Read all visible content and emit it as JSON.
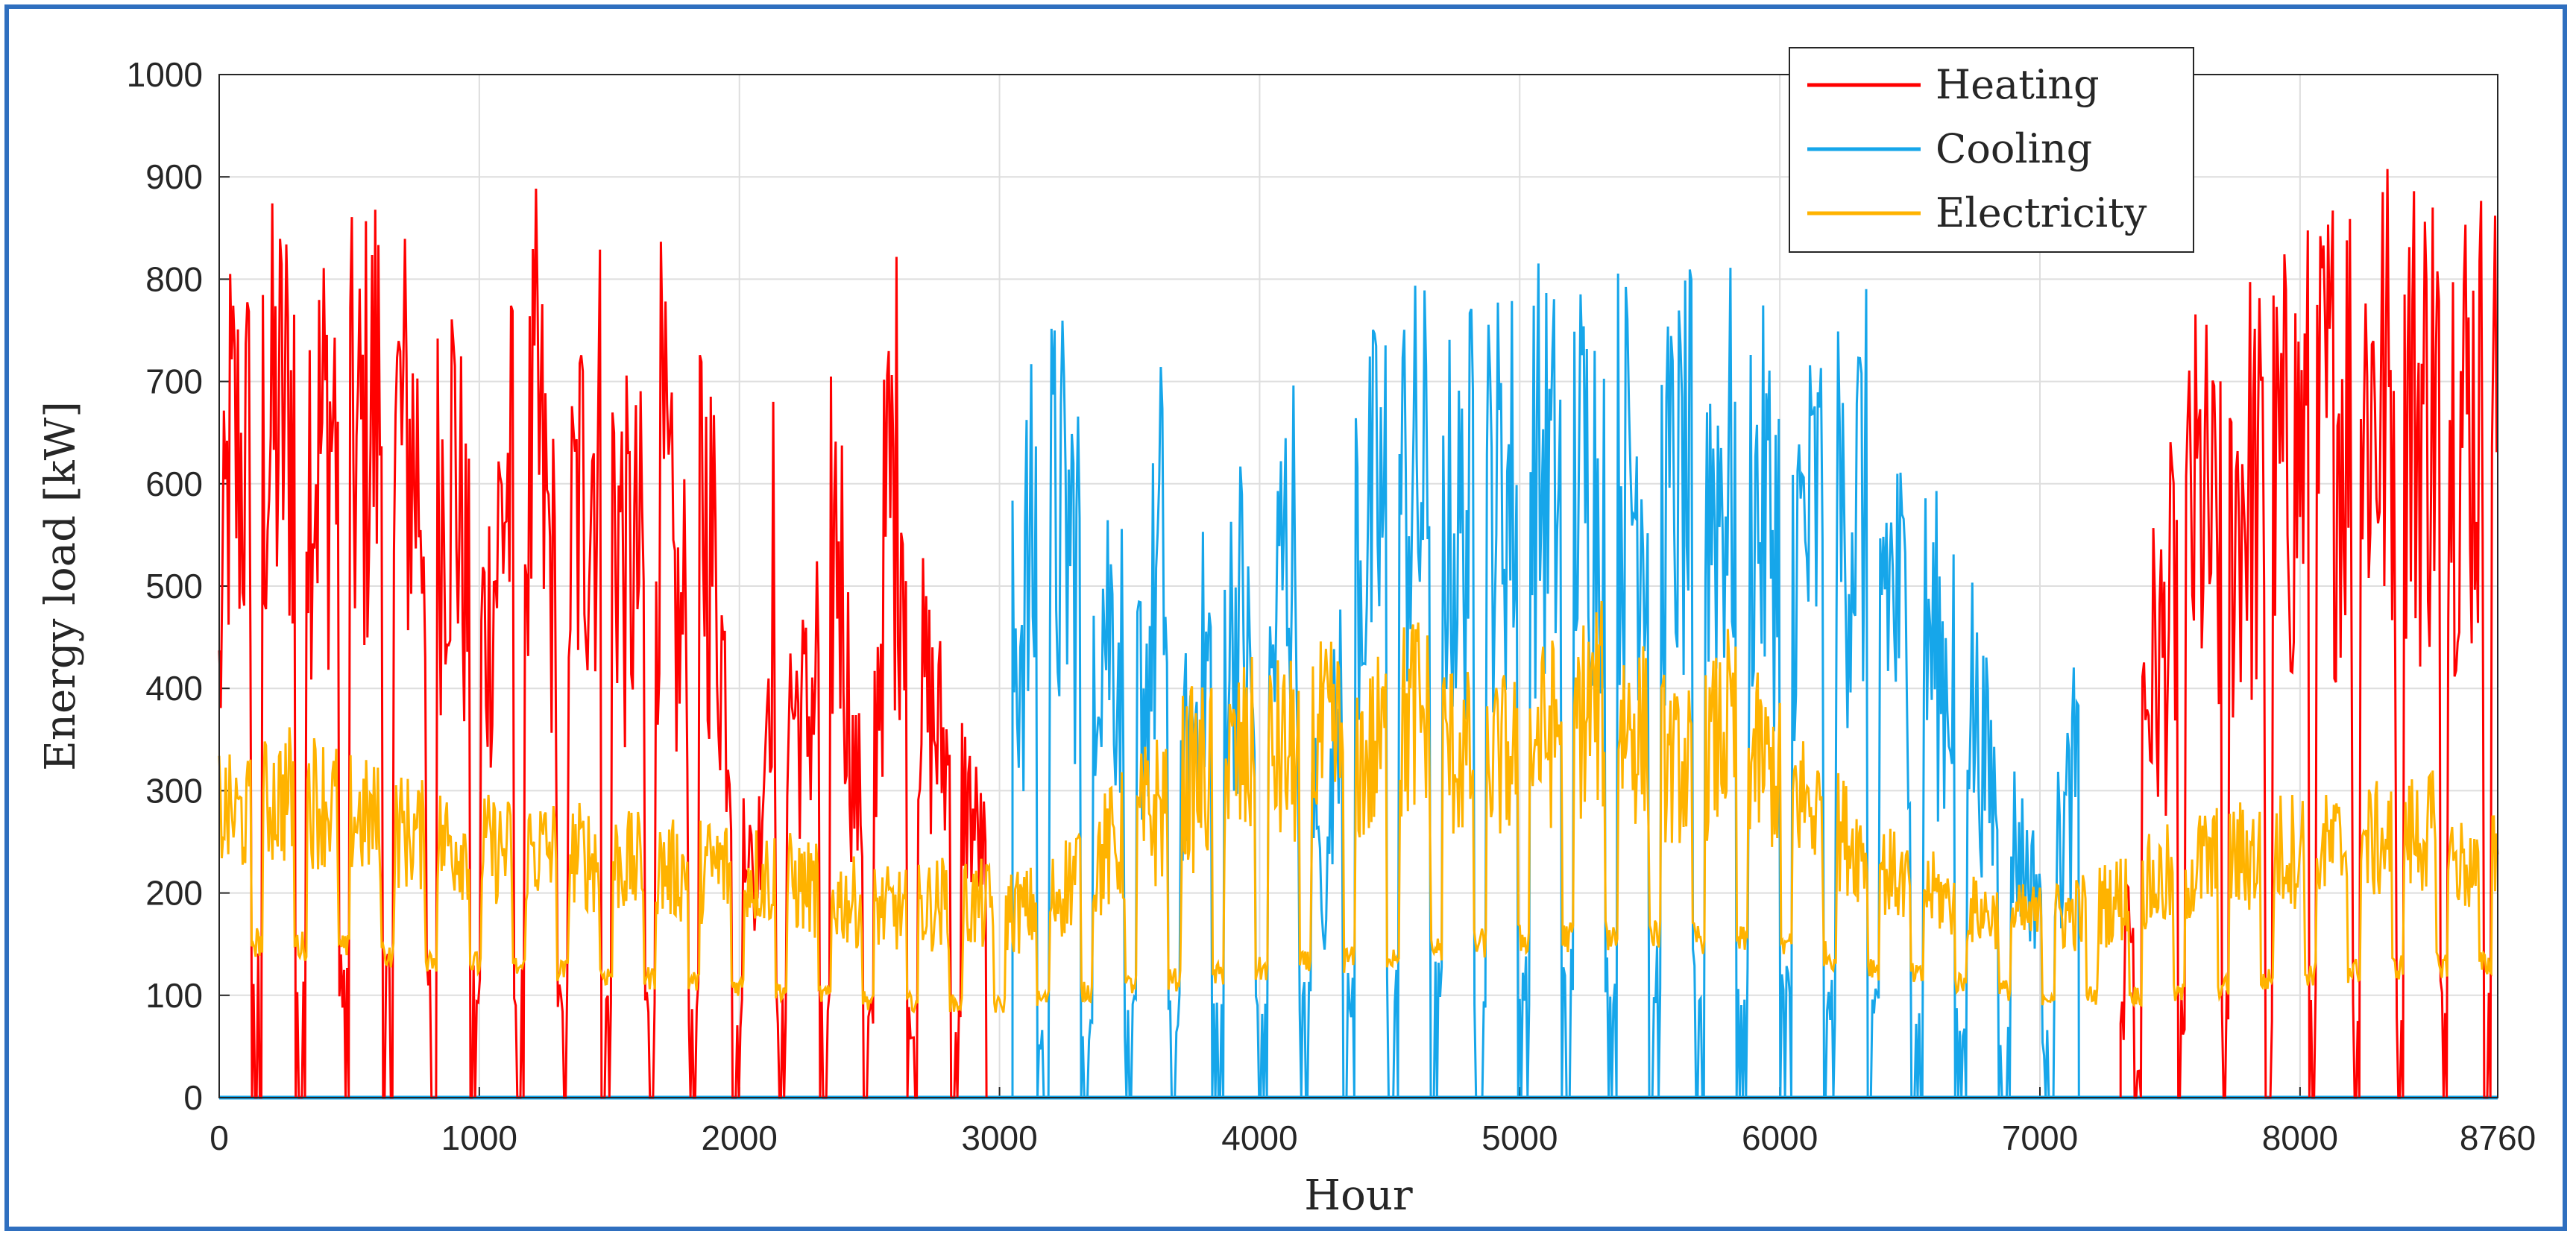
{
  "chart_data": {
    "type": "line",
    "xlabel": "Hour",
    "ylabel": "Energy load [kW]",
    "xlim": [
      0,
      8760
    ],
    "ylim": [
      0,
      1000
    ],
    "xticks": [
      0,
      1000,
      2000,
      3000,
      4000,
      5000,
      6000,
      7000,
      8000,
      8760
    ],
    "yticks": [
      0,
      100,
      200,
      300,
      400,
      500,
      600,
      700,
      800,
      900,
      1000
    ],
    "grid": true,
    "legend": "top-right",
    "series": [
      {
        "name": "Heating",
        "color": "#ff0000",
        "peaks": [
          [
            0,
            520
          ],
          [
            40,
            860
          ],
          [
            100,
            830
          ],
          [
            150,
            860
          ],
          [
            230,
            900
          ],
          [
            300,
            925
          ],
          [
            380,
            870
          ],
          [
            460,
            920
          ],
          [
            530,
            840
          ],
          [
            600,
            940
          ],
          [
            680,
            900
          ],
          [
            760,
            850
          ],
          [
            840,
            790
          ],
          [
            900,
            880
          ],
          [
            960,
            630
          ],
          [
            1030,
            610
          ],
          [
            1100,
            820
          ],
          [
            1180,
            760
          ],
          [
            1220,
            900
          ],
          [
            1300,
            620
          ],
          [
            1370,
            760
          ],
          [
            1430,
            880
          ],
          [
            1500,
            870
          ],
          [
            1560,
            710
          ],
          [
            1630,
            700
          ],
          [
            1700,
            850
          ],
          [
            1770,
            580
          ],
          [
            1850,
            830
          ],
          [
            1900,
            730
          ],
          [
            1960,
            490
          ],
          [
            2020,
            400
          ],
          [
            2060,
            210
          ],
          [
            2130,
            720
          ],
          [
            2200,
            520
          ],
          [
            2260,
            490
          ],
          [
            2380,
            790
          ],
          [
            2440,
            400
          ],
          [
            2500,
            350
          ],
          [
            2570,
            810
          ],
          [
            2620,
            870
          ],
          [
            2700,
            540
          ],
          [
            2800,
            440
          ],
          [
            2880,
            380
          ],
          [
            2950,
            290
          ]
        ],
        "baseline": [
          [
            0,
            150
          ],
          [
            500,
            145
          ],
          [
            1000,
            130
          ],
          [
            1500,
            120
          ],
          [
            2000,
            110
          ],
          [
            2500,
            100
          ],
          [
            2950,
            90
          ]
        ]
      },
      {
        "name": "Cooling",
        "color": "#16a6ea",
        "peaks": [
          [
            3050,
            600
          ],
          [
            3100,
            700
          ],
          [
            3150,
            760
          ],
          [
            3220,
            790
          ],
          [
            3280,
            760
          ],
          [
            3350,
            730
          ],
          [
            3430,
            640
          ],
          [
            3500,
            560
          ],
          [
            3560,
            540
          ],
          [
            3620,
            740
          ],
          [
            3700,
            420
          ],
          [
            3780,
            560
          ],
          [
            3860,
            600
          ],
          [
            3930,
            650
          ],
          [
            4010,
            380
          ],
          [
            4080,
            700
          ],
          [
            4120,
            770
          ],
          [
            4180,
            560
          ],
          [
            4250,
            180
          ],
          [
            4330,
            790
          ],
          [
            4400,
            720
          ],
          [
            4450,
            780
          ],
          [
            4500,
            790
          ],
          [
            4560,
            810
          ],
          [
            4620,
            810
          ],
          [
            4700,
            790
          ],
          [
            4760,
            720
          ],
          [
            4820,
            800
          ],
          [
            4880,
            790
          ],
          [
            4950,
            810
          ],
          [
            5020,
            820
          ],
          [
            5080,
            830
          ],
          [
            5140,
            800
          ],
          [
            5200,
            820
          ],
          [
            5260,
            830
          ],
          [
            5320,
            820
          ],
          [
            5380,
            830
          ],
          [
            5440,
            810
          ],
          [
            5500,
            820
          ],
          [
            5560,
            780
          ],
          [
            5620,
            800
          ],
          [
            5680,
            820
          ],
          [
            5740,
            810
          ],
          [
            5800,
            830
          ],
          [
            5860,
            820
          ],
          [
            5920,
            780
          ],
          [
            5980,
            760
          ],
          [
            6040,
            720
          ],
          [
            6100,
            740
          ],
          [
            6160,
            790
          ],
          [
            6220,
            770
          ],
          [
            6280,
            800
          ],
          [
            6320,
            810
          ],
          [
            6400,
            720
          ],
          [
            6460,
            650
          ],
          [
            6520,
            600
          ],
          [
            6580,
            620
          ],
          [
            6640,
            560
          ],
          [
            6700,
            670
          ],
          [
            6760,
            480
          ],
          [
            6820,
            400
          ],
          [
            6900,
            340
          ],
          [
            6980,
            270
          ],
          [
            7080,
            330
          ],
          [
            7150,
            460
          ]
        ],
        "baseline": [
          [
            3050,
            60
          ],
          [
            3500,
            100
          ],
          [
            4000,
            110
          ],
          [
            4500,
            130
          ],
          [
            5000,
            150
          ],
          [
            5500,
            150
          ],
          [
            6000,
            140
          ],
          [
            6500,
            100
          ],
          [
            7150,
            60
          ]
        ]
      },
      {
        "name": "Electricity",
        "color": "#ffb300",
        "peaks": [
          [
            0,
            340
          ],
          [
            100,
            330
          ],
          [
            200,
            360
          ],
          [
            300,
            370
          ],
          [
            400,
            360
          ],
          [
            500,
            340
          ],
          [
            600,
            330
          ],
          [
            700,
            320
          ],
          [
            800,
            310
          ],
          [
            900,
            305
          ],
          [
            1000,
            300
          ],
          [
            1100,
            295
          ],
          [
            1200,
            300
          ],
          [
            1300,
            295
          ],
          [
            1400,
            290
          ],
          [
            1500,
            285
          ],
          [
            1600,
            280
          ],
          [
            1700,
            275
          ],
          [
            1800,
            270
          ],
          [
            1900,
            280
          ],
          [
            2000,
            275
          ],
          [
            2100,
            270
          ],
          [
            2200,
            260
          ],
          [
            2300,
            250
          ],
          [
            2400,
            240
          ],
          [
            2500,
            230
          ],
          [
            2600,
            225
          ],
          [
            2700,
            230
          ],
          [
            2800,
            240
          ],
          [
            2900,
            235
          ],
          [
            3000,
            230
          ],
          [
            3100,
            225
          ],
          [
            3200,
            240
          ],
          [
            3300,
            280
          ],
          [
            3400,
            300
          ],
          [
            3500,
            330
          ],
          [
            3600,
            360
          ],
          [
            3700,
            400
          ],
          [
            3800,
            410
          ],
          [
            3900,
            420
          ],
          [
            4000,
            440
          ],
          [
            4100,
            430
          ],
          [
            4200,
            445
          ],
          [
            4300,
            450
          ],
          [
            4400,
            420
          ],
          [
            4500,
            450
          ],
          [
            4600,
            490
          ],
          [
            4700,
            440
          ],
          [
            4800,
            420
          ],
          [
            4900,
            410
          ],
          [
            5000,
            430
          ],
          [
            5100,
            450
          ],
          [
            5200,
            470
          ],
          [
            5300,
            490
          ],
          [
            5400,
            470
          ],
          [
            5500,
            440
          ],
          [
            5600,
            400
          ],
          [
            5700,
            410
          ],
          [
            5800,
            460
          ],
          [
            5900,
            420
          ],
          [
            6000,
            390
          ],
          [
            6100,
            360
          ],
          [
            6200,
            330
          ],
          [
            6300,
            300
          ],
          [
            6400,
            270
          ],
          [
            6500,
            250
          ],
          [
            6600,
            240
          ],
          [
            6700,
            220
          ],
          [
            6800,
            215
          ],
          [
            6900,
            210
          ],
          [
            7000,
            210
          ],
          [
            7100,
            215
          ],
          [
            7200,
            225
          ],
          [
            7300,
            240
          ],
          [
            7400,
            255
          ],
          [
            7500,
            270
          ],
          [
            7600,
            285
          ],
          [
            7700,
            290
          ],
          [
            7800,
            295
          ],
          [
            7900,
            300
          ],
          [
            8000,
            305
          ],
          [
            8100,
            300
          ],
          [
            8200,
            305
          ],
          [
            8300,
            310
          ],
          [
            8400,
            315
          ],
          [
            8500,
            325
          ],
          [
            8600,
            280
          ],
          [
            8700,
            260
          ],
          [
            8760,
            330
          ]
        ],
        "baseline": [
          [
            0,
            155
          ],
          [
            500,
            145
          ],
          [
            1000,
            130
          ],
          [
            1500,
            120
          ],
          [
            2000,
            110
          ],
          [
            2500,
            95
          ],
          [
            3000,
            90
          ],
          [
            3500,
            110
          ],
          [
            4000,
            125
          ],
          [
            4500,
            140
          ],
          [
            5000,
            155
          ],
          [
            5500,
            160
          ],
          [
            6000,
            150
          ],
          [
            6500,
            120
          ],
          [
            7000,
            100
          ],
          [
            7500,
            100
          ],
          [
            8000,
            120
          ],
          [
            8500,
            130
          ],
          [
            8760,
            130
          ]
        ]
      }
    ],
    "heating_winter_tail": {
      "peaks": [
        [
          7310,
          80
        ],
        [
          7400,
          560
        ],
        [
          7480,
          600
        ],
        [
          7550,
          740
        ],
        [
          7620,
          800
        ],
        [
          7700,
          700
        ],
        [
          7780,
          850
        ],
        [
          7860,
          800
        ],
        [
          7940,
          840
        ],
        [
          8000,
          880
        ],
        [
          8060,
          870
        ],
        [
          8120,
          920
        ],
        [
          8170,
          950
        ],
        [
          8220,
          930
        ],
        [
          8280,
          960
        ],
        [
          8340,
          940
        ],
        [
          8400,
          960
        ],
        [
          8460,
          930
        ],
        [
          8520,
          960
        ],
        [
          8580,
          940
        ],
        [
          8640,
          930
        ],
        [
          8700,
          920
        ],
        [
          8760,
          950
        ]
      ],
      "baseline": [
        [
          7310,
          0
        ],
        [
          7500,
          100
        ],
        [
          8000,
          120
        ],
        [
          8760,
          130
        ]
      ]
    }
  }
}
